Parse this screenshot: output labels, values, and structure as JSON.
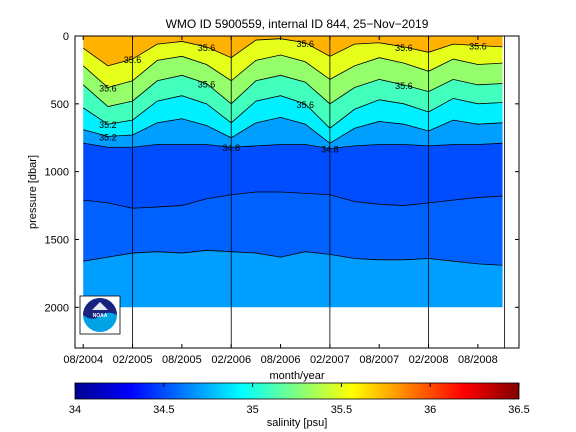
{
  "chart_data": {
    "type": "heatmap",
    "title": "WMO ID 5900559, internal ID 844, 25−Nov−2019",
    "xlabel": "month/year",
    "ylabel": "pressure [dbar]",
    "x_ticks": [
      "08/2004",
      "02/2005",
      "08/2005",
      "02/2006",
      "08/2006",
      "02/2007",
      "08/2007",
      "02/2008",
      "08/2008"
    ],
    "y_ticks": [
      0,
      500,
      1000,
      1500,
      2000
    ],
    "ylim": [
      2300,
      0
    ],
    "xlim": [
      "2004-07",
      "2009-01"
    ],
    "y_reversed": true,
    "grid": false,
    "vertical_lines": [
      "02/2005",
      "02/2006",
      "02/2007",
      "02/2008"
    ],
    "max_depth_dbar": 2000,
    "colorbar": {
      "label": "salinity [psu]",
      "range": [
        34,
        36.5
      ],
      "ticks": [
        34,
        34.5,
        35,
        35.5,
        36,
        36.5
      ],
      "tick_labels": [
        "34",
        "34.5",
        "35",
        "35.5",
        "36",
        "36.5"
      ],
      "colormap": "jet"
    },
    "series": [
      {
        "name": "",
        "level_psu": 35.6,
        "x": [
          "2004-08",
          "2004-11",
          "2005-02",
          "2005-05",
          "2005-08",
          "2005-11",
          "2006-02",
          "2006-05",
          "2006-08",
          "2006-11",
          "2007-02",
          "2007-05",
          "2007-08",
          "2007-11",
          "2008-02",
          "2008-05",
          "2008-08",
          "2008-11"
        ],
        "y": [
          90,
          220,
          170,
          60,
          40,
          80,
          160,
          30,
          20,
          50,
          150,
          60,
          50,
          80,
          120,
          60,
          70,
          80
        ]
      },
      {
        "name": "",
        "level_psu": 35.4,
        "x": [
          "2004-08",
          "2004-11",
          "2005-02",
          "2005-05",
          "2005-08",
          "2005-11",
          "2006-02",
          "2006-05",
          "2006-08",
          "2006-11",
          "2007-02",
          "2007-05",
          "2007-08",
          "2007-11",
          "2008-02",
          "2008-05",
          "2008-08",
          "2008-11"
        ],
        "y": [
          220,
          380,
          330,
          180,
          150,
          210,
          330,
          180,
          140,
          190,
          320,
          220,
          160,
          200,
          260,
          170,
          210,
          200
        ]
      },
      {
        "name": "",
        "level_psu": 35.2,
        "x": [
          "2004-08",
          "2004-11",
          "2005-02",
          "2005-05",
          "2005-08",
          "2005-11",
          "2006-02",
          "2006-05",
          "2006-08",
          "2006-11",
          "2007-02",
          "2007-05",
          "2007-08",
          "2007-11",
          "2008-02",
          "2008-05",
          "2008-08",
          "2008-11"
        ],
        "y": [
          360,
          520,
          480,
          330,
          290,
          350,
          500,
          330,
          290,
          340,
          500,
          380,
          320,
          360,
          410,
          320,
          360,
          350
        ]
      },
      {
        "name": "",
        "level_psu": 35.0,
        "x": [
          "2004-08",
          "2004-11",
          "2005-02",
          "2005-05",
          "2005-08",
          "2005-11",
          "2006-02",
          "2006-05",
          "2006-08",
          "2006-11",
          "2007-02",
          "2007-05",
          "2007-08",
          "2007-11",
          "2008-02",
          "2008-05",
          "2008-08",
          "2008-11"
        ],
        "y": [
          530,
          650,
          620,
          480,
          440,
          500,
          640,
          480,
          440,
          500,
          680,
          540,
          470,
          500,
          560,
          460,
          500,
          490
        ]
      },
      {
        "name": "",
        "level_psu": 34.8,
        "x": [
          "2004-08",
          "2004-11",
          "2005-02",
          "2005-05",
          "2005-08",
          "2005-11",
          "2006-02",
          "2006-05",
          "2006-08",
          "2006-11",
          "2007-02",
          "2007-05",
          "2007-08",
          "2007-11",
          "2008-02",
          "2008-05",
          "2008-08",
          "2008-11"
        ],
        "y": [
          690,
          740,
          730,
          640,
          610,
          660,
          750,
          640,
          600,
          650,
          790,
          680,
          630,
          650,
          700,
          620,
          650,
          640
        ]
      },
      {
        "name": "",
        "level_psu": 34.6,
        "x": [
          "2004-08",
          "2004-11",
          "2005-02",
          "2005-05",
          "2005-08",
          "2005-11",
          "2006-02",
          "2006-05",
          "2006-08",
          "2006-11",
          "2007-02",
          "2007-05",
          "2007-08",
          "2007-11",
          "2008-02",
          "2008-05",
          "2008-08",
          "2008-11"
        ],
        "y": [
          790,
          820,
          820,
          800,
          800,
          800,
          820,
          810,
          800,
          800,
          830,
          810,
          800,
          800,
          810,
          800,
          800,
          790
        ]
      },
      {
        "name": "",
        "level_psu": 34.9,
        "x": [
          "2004-08",
          "2004-11",
          "2005-02",
          "2005-05",
          "2005-08",
          "2005-11",
          "2006-02",
          "2006-05",
          "2006-08",
          "2006-11",
          "2007-02",
          "2007-05",
          "2007-08",
          "2007-11",
          "2008-02",
          "2008-05",
          "2008-08",
          "2008-11"
        ],
        "y": [
          1210,
          1230,
          1270,
          1260,
          1250,
          1200,
          1170,
          1150,
          1150,
          1160,
          1170,
          1220,
          1240,
          1250,
          1230,
          1210,
          1190,
          1180
        ]
      },
      {
        "name": "",
        "level_psu": 34.9,
        "x": [
          "2004-08",
          "2004-11",
          "2005-02",
          "2005-05",
          "2005-08",
          "2005-11",
          "2006-02",
          "2006-05",
          "2006-08",
          "2006-11",
          "2007-02",
          "2007-05",
          "2007-08",
          "2007-11",
          "2008-02",
          "2008-05",
          "2008-08",
          "2008-11"
        ],
        "y": [
          1660,
          1630,
          1600,
          1590,
          1600,
          1580,
          1590,
          1600,
          1630,
          1590,
          1610,
          1640,
          1650,
          1650,
          1640,
          1660,
          1680,
          1690
        ]
      }
    ],
    "contour_labels": [
      "35.6",
      "35.6",
      "35.6",
      "35.6",
      "35.6",
      "35.6",
      "35.6",
      "35.6",
      "35.6",
      "35.2",
      "35.2",
      "34.8",
      "34.8"
    ]
  },
  "logo": {
    "name": "noaa-logo",
    "text": "NOAA",
    "colors": [
      "#1a237e",
      "#00a4e4",
      "#ffffff"
    ]
  },
  "colors": {
    "contour": "#000000",
    "background": "#ffffff"
  }
}
